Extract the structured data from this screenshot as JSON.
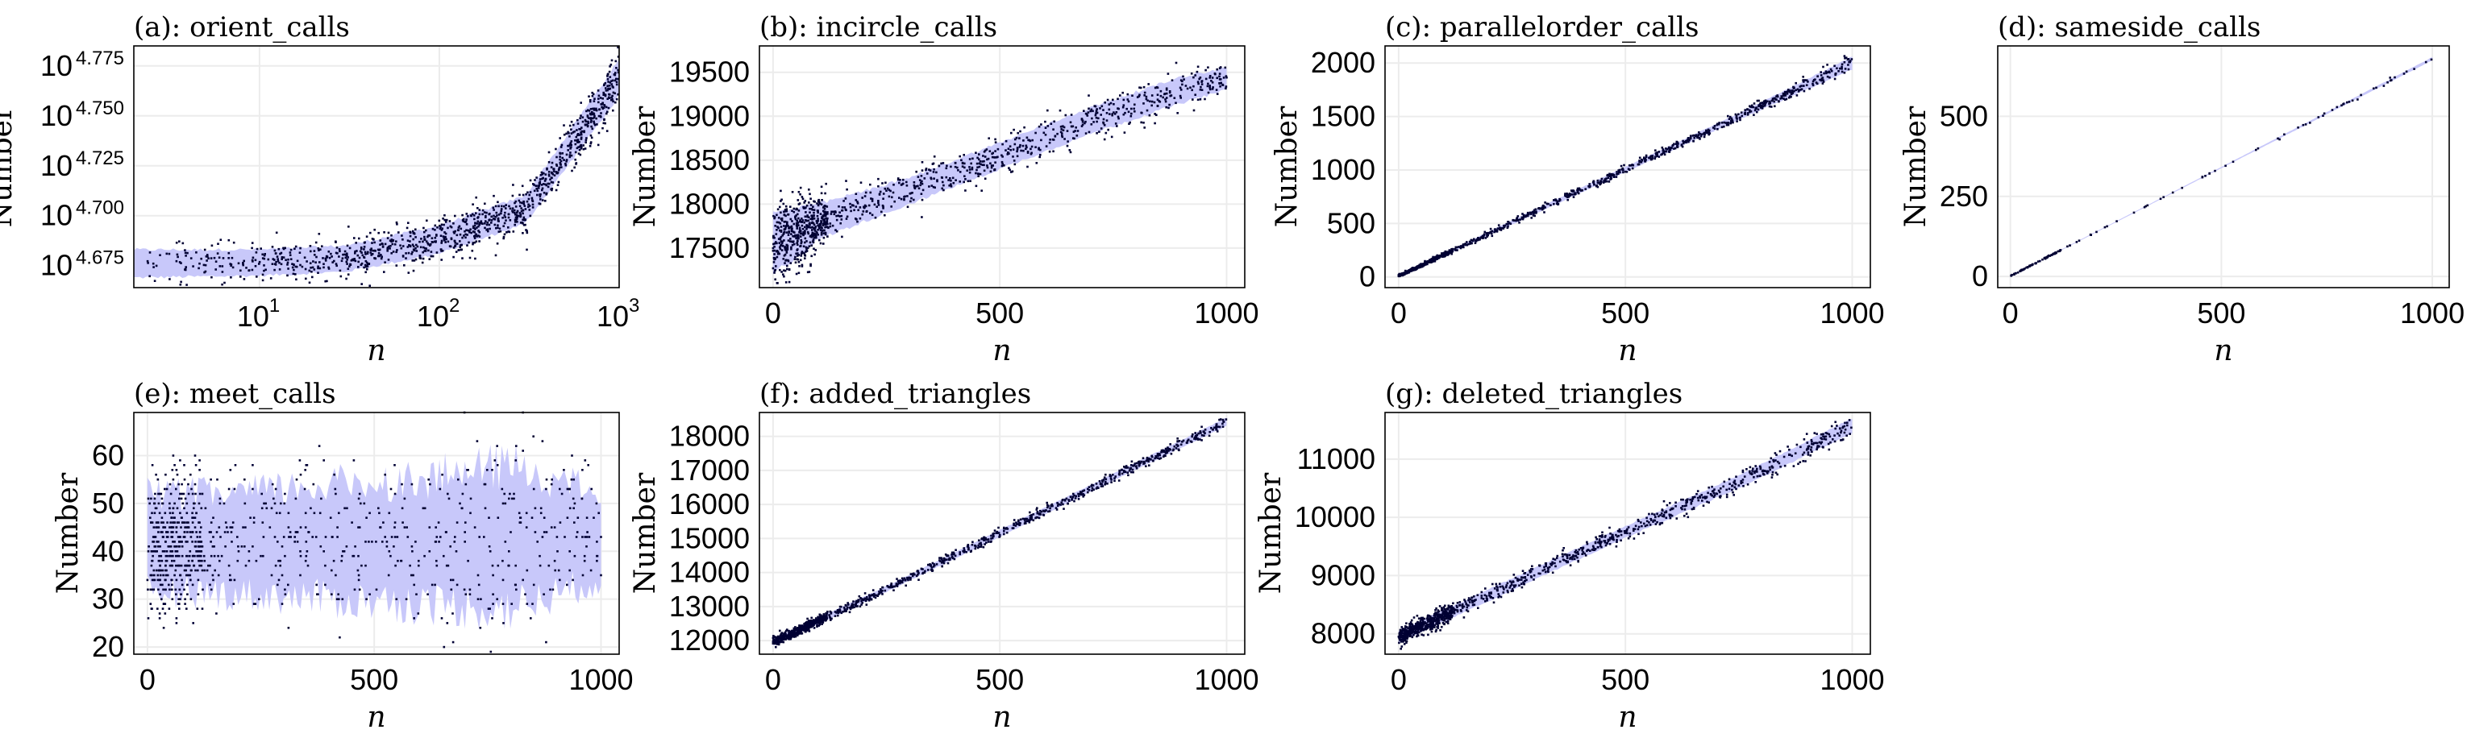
{
  "chart_data": [
    {
      "id": "a",
      "type": "scatter",
      "title": "(a): orient_calls",
      "xlabel": "n",
      "ylabel": "Number",
      "x_scale": "log",
      "xlim": [
        2,
        1000
      ],
      "x_ticks": [
        {
          "base": "10",
          "exp": "1",
          "v": 10
        },
        {
          "base": "10",
          "exp": "2",
          "v": 100
        },
        {
          "base": "10",
          "exp": "3",
          "v": 1000
        }
      ],
      "y_scale": "log",
      "ylim_log10": [
        4.664,
        4.785
      ],
      "y_ticks": [
        {
          "base": "10",
          "exp": "4.675",
          "v": 4.675
        },
        {
          "base": "10",
          "exp": "4.700",
          "v": 4.7
        },
        {
          "base": "10",
          "exp": "4.725",
          "v": 4.725
        },
        {
          "base": "10",
          "exp": "4.750",
          "v": 4.75
        },
        {
          "base": "10",
          "exp": "4.775",
          "v": 4.775
        }
      ],
      "series_x": [
        2,
        10,
        30,
        100,
        300,
        1000
      ],
      "band_lower_log10": [
        4.669,
        4.67,
        4.672,
        4.681,
        4.696,
        4.76
      ],
      "band_upper_log10": [
        4.683,
        4.683,
        4.685,
        4.695,
        4.71,
        4.778
      ],
      "grid": true,
      "band_color": "#c8c8fa",
      "point_color": "#000033"
    },
    {
      "id": "b",
      "type": "scatter",
      "title": "(b): incircle_calls",
      "xlabel": "n",
      "ylabel": "Number",
      "x_scale": "linear",
      "xlim": [
        -30,
        1040
      ],
      "x_ticks": [
        0,
        500,
        1000
      ],
      "ylim": [
        17050,
        19800
      ],
      "y_ticks": [
        17500,
        18000,
        18500,
        19000,
        19500
      ],
      "series_x": [
        0,
        100,
        300,
        500,
        700,
        900,
        1000
      ],
      "band_lower": [
        17200,
        17600,
        18000,
        18400,
        18800,
        19150,
        19300
      ],
      "band_upper": [
        17900,
        18000,
        18300,
        18700,
        19100,
        19450,
        19550
      ],
      "grid": true,
      "band_color": "#c8c8fa",
      "point_color": "#000033"
    },
    {
      "id": "c",
      "type": "scatter",
      "title": "(c): parallelorder_calls",
      "xlabel": "n",
      "ylabel": "Number",
      "x_scale": "linear",
      "xlim": [
        -30,
        1040
      ],
      "x_ticks": [
        0,
        500,
        1000
      ],
      "ylim": [
        -100,
        2160
      ],
      "y_ticks": [
        0,
        500,
        1000,
        1500,
        2000
      ],
      "series_x": [
        0,
        250,
        500,
        750,
        1000
      ],
      "band_lower": [
        0,
        490,
        980,
        1470,
        1940
      ],
      "band_upper": [
        15,
        530,
        1030,
        1530,
        2060
      ],
      "grid": true,
      "band_color": "#c8c8fa",
      "point_color": "#000033"
    },
    {
      "id": "d",
      "type": "scatter",
      "title": "(d): sameside_calls",
      "xlabel": "n",
      "ylabel": "Number",
      "x_scale": "linear",
      "xlim": [
        -30,
        1040
      ],
      "x_ticks": [
        0,
        500,
        1000
      ],
      "ylim": [
        -35,
        720
      ],
      "y_ticks": [
        0,
        250,
        500
      ],
      "series_x": [
        0,
        500,
        1000
      ],
      "band_lower": [
        0,
        338,
        675
      ],
      "band_upper": [
        2,
        342,
        685
      ],
      "grid": true,
      "band_color": "#c8c8fa",
      "point_color": "#000033"
    },
    {
      "id": "e",
      "type": "scatter",
      "title": "(e): meet_calls",
      "xlabel": "n",
      "ylabel": "Number",
      "x_scale": "linear",
      "xlim": [
        -30,
        1040
      ],
      "x_ticks": [
        0,
        500,
        1000
      ],
      "ylim": [
        18.5,
        69
      ],
      "y_ticks": [
        20,
        30,
        40,
        50,
        60
      ],
      "series_x": [
        0,
        200,
        400,
        600,
        800,
        1000
      ],
      "band_lower": [
        32,
        31,
        30,
        29,
        28,
        34
      ],
      "band_upper": [
        52,
        52,
        54,
        55,
        58,
        52
      ],
      "grid": true,
      "band_color": "#c8c8fa",
      "point_color": "#000033"
    },
    {
      "id": "f",
      "type": "scatter",
      "title": "(f): added_triangles",
      "xlabel": "n",
      "ylabel": "Number",
      "x_scale": "linear",
      "xlim": [
        -30,
        1040
      ],
      "x_ticks": [
        0,
        500,
        1000
      ],
      "ylim": [
        11600,
        18700
      ],
      "y_ticks": [
        12000,
        13000,
        14000,
        15000,
        16000,
        17000,
        18000
      ],
      "series_x": [
        0,
        250,
        500,
        750,
        1000
      ],
      "band_lower": [
        11850,
        13430,
        15050,
        16700,
        18300
      ],
      "band_upper": [
        12050,
        13600,
        15250,
        16900,
        18550
      ],
      "grid": true,
      "band_color": "#c8c8fa",
      "point_color": "#000033"
    },
    {
      "id": "g",
      "type": "scatter",
      "title": "(g): deleted_triangles",
      "xlabel": "n",
      "ylabel": "Number",
      "x_scale": "linear",
      "xlim": [
        -30,
        1040
      ],
      "x_ticks": [
        0,
        500,
        1000
      ],
      "ylim": [
        7650,
        11800
      ],
      "y_ticks": [
        8000,
        9000,
        10000,
        11000
      ],
      "series_x": [
        0,
        250,
        500,
        750,
        1000
      ],
      "band_lower": [
        7850,
        8750,
        9650,
        10500,
        11450
      ],
      "band_upper": [
        8050,
        8950,
        9850,
        10720,
        11700
      ],
      "grid": true,
      "band_color": "#c8c8fa",
      "point_color": "#000033"
    }
  ]
}
